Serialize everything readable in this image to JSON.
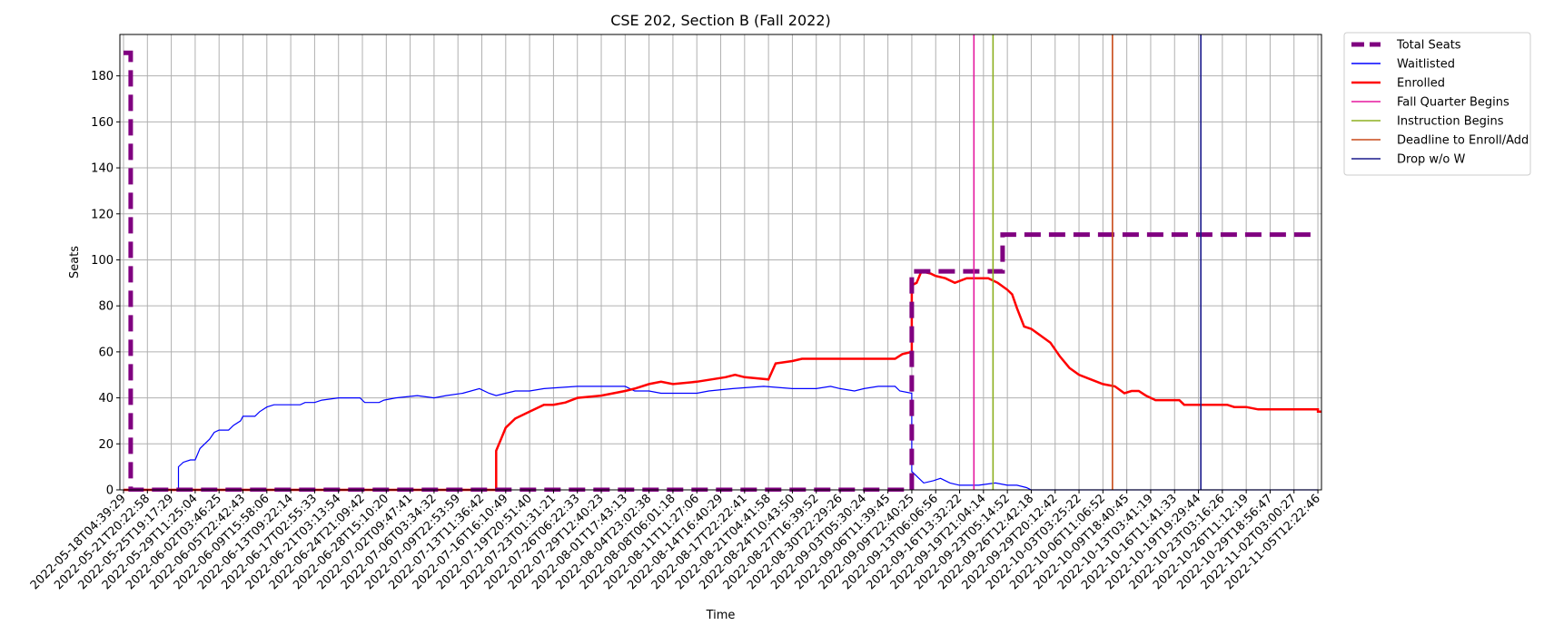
{
  "chart_data": {
    "type": "line",
    "title": "CSE 202, Section B (Fall 2022)",
    "xlabel": "Time",
    "ylabel": "Seats",
    "ylim": [
      0,
      198
    ],
    "y_ticks": [
      0,
      20,
      40,
      60,
      80,
      100,
      120,
      140,
      160,
      180
    ],
    "x_ticks": [
      "2022-05-18T04:39:29",
      "2022-05-21T20:22:58",
      "2022-05-25T19:17:29",
      "2022-05-29T11:25:04",
      "2022-06-02T03:46:25",
      "2022-06-05T22:42:43",
      "2022-06-09T15:58:06",
      "2022-06-13T09:22:14",
      "2022-06-17T02:55:33",
      "2022-06-21T03:13:54",
      "2022-06-24T21:09:42",
      "2022-06-28T15:10:20",
      "2022-07-02T09:47:41",
      "2022-07-06T03:34:32",
      "2022-07-09T22:53:59",
      "2022-07-13T11:36:42",
      "2022-07-16T16:10:49",
      "2022-07-19T20:51:40",
      "2022-07-23T01:31:21",
      "2022-07-26T06:22:33",
      "2022-07-29T12:40:23",
      "2022-08-01T17:43:13",
      "2022-08-04T23:02:38",
      "2022-08-08T06:01:18",
      "2022-08-11T11:27:06",
      "2022-08-14T16:40:29",
      "2022-08-17T22:22:41",
      "2022-08-21T04:41:58",
      "2022-08-24T10:43:50",
      "2022-08-27T16:39:52",
      "2022-08-30T22:29:26",
      "2022-09-03T05:30:24",
      "2022-09-06T11:39:45",
      "2022-09-09T22:40:25",
      "2022-09-13T06:06:56",
      "2022-09-16T13:32:22",
      "2022-09-19T21:04:14",
      "2022-09-23T05:14:52",
      "2022-09-26T12:42:18",
      "2022-09-29T20:12:42",
      "2022-10-03T03:25:22",
      "2022-10-06T11:06:52",
      "2022-10-09T18:40:45",
      "2022-10-13T03:41:19",
      "2022-10-16T11:41:33",
      "2022-10-19T19:29:44",
      "2022-10-23T03:16:26",
      "2022-10-26T11:12:19",
      "2022-10-29T18:56:47",
      "2022-11-02T03:00:27",
      "2022-11-05T12:22:46"
    ],
    "grid": true,
    "legend_position": "outside-right",
    "series": [
      {
        "name": "Total Seats",
        "color": "#800080",
        "style": "dashed-thick",
        "points": [
          [
            0,
            190
          ],
          [
            0.3,
            190
          ],
          [
            0.3,
            0
          ],
          [
            33.0,
            0
          ],
          [
            33.0,
            95
          ],
          [
            36.8,
            95
          ],
          [
            36.8,
            111
          ],
          [
            50.0,
            111
          ]
        ]
      },
      {
        "name": "Waitlisted",
        "color": "#0000ff",
        "style": "thin",
        "points": [
          [
            0,
            0
          ],
          [
            2.3,
            0
          ],
          [
            2.3,
            10
          ],
          [
            2.5,
            12
          ],
          [
            2.8,
            13
          ],
          [
            3.0,
            13
          ],
          [
            3.2,
            18
          ],
          [
            3.6,
            22
          ],
          [
            3.8,
            25
          ],
          [
            4.0,
            26
          ],
          [
            4.4,
            26
          ],
          [
            4.6,
            28
          ],
          [
            4.9,
            30
          ],
          [
            5.0,
            32
          ],
          [
            5.5,
            32
          ],
          [
            5.7,
            34
          ],
          [
            6.0,
            36
          ],
          [
            6.3,
            37
          ],
          [
            7.4,
            37
          ],
          [
            7.6,
            38
          ],
          [
            8.0,
            38
          ],
          [
            8.3,
            39
          ],
          [
            9.0,
            40
          ],
          [
            9.9,
            40
          ],
          [
            10.1,
            38
          ],
          [
            10.7,
            38
          ],
          [
            10.9,
            39
          ],
          [
            11.4,
            40
          ],
          [
            12.3,
            41
          ],
          [
            13.0,
            40
          ],
          [
            13.5,
            41
          ],
          [
            14.2,
            42
          ],
          [
            14.9,
            44
          ],
          [
            15.3,
            42
          ],
          [
            15.6,
            41
          ],
          [
            16.0,
            42
          ],
          [
            16.4,
            43
          ],
          [
            17.0,
            43
          ],
          [
            17.6,
            44
          ],
          [
            19.0,
            45
          ],
          [
            21.0,
            45
          ],
          [
            21.4,
            43
          ],
          [
            22.0,
            43
          ],
          [
            22.5,
            42
          ],
          [
            24.0,
            42
          ],
          [
            24.5,
            43
          ],
          [
            25.5,
            44
          ],
          [
            26.8,
            45
          ],
          [
            28.0,
            44
          ],
          [
            29.0,
            44
          ],
          [
            29.6,
            45
          ],
          [
            30.0,
            44
          ],
          [
            30.6,
            43
          ],
          [
            31.0,
            44
          ],
          [
            31.6,
            45
          ],
          [
            32.3,
            45
          ],
          [
            32.5,
            43
          ],
          [
            33.0,
            42
          ],
          [
            33.0,
            8
          ],
          [
            33.3,
            5
          ],
          [
            33.5,
            3
          ],
          [
            33.9,
            4
          ],
          [
            34.2,
            5
          ],
          [
            34.6,
            3
          ],
          [
            35.0,
            2
          ],
          [
            35.8,
            2
          ],
          [
            36.5,
            3
          ],
          [
            37.0,
            2
          ],
          [
            37.4,
            2
          ],
          [
            37.8,
            1
          ],
          [
            38.0,
            0
          ],
          [
            50.0,
            0
          ]
        ]
      },
      {
        "name": "Enrolled",
        "color": "#ff0000",
        "style": "thick",
        "points": [
          [
            0,
            0
          ],
          [
            15.6,
            0
          ],
          [
            15.6,
            17
          ],
          [
            15.8,
            22
          ],
          [
            16.0,
            27
          ],
          [
            16.4,
            31
          ],
          [
            17.0,
            34
          ],
          [
            17.6,
            37
          ],
          [
            18.0,
            37
          ],
          [
            18.5,
            38
          ],
          [
            19.0,
            40
          ],
          [
            20.0,
            41
          ],
          [
            21.0,
            43
          ],
          [
            21.4,
            44
          ],
          [
            22.0,
            46
          ],
          [
            22.5,
            47
          ],
          [
            23.0,
            46
          ],
          [
            24.0,
            47
          ],
          [
            24.6,
            48
          ],
          [
            25.2,
            49
          ],
          [
            25.6,
            50
          ],
          [
            26.0,
            49
          ],
          [
            27.0,
            48
          ],
          [
            27.3,
            55
          ],
          [
            28.0,
            56
          ],
          [
            28.4,
            57
          ],
          [
            32.3,
            57
          ],
          [
            32.6,
            59
          ],
          [
            33.0,
            60
          ],
          [
            33.0,
            89
          ],
          [
            33.2,
            90
          ],
          [
            33.4,
            95
          ],
          [
            33.8,
            94
          ],
          [
            34.0,
            93
          ],
          [
            34.4,
            92
          ],
          [
            34.8,
            90
          ],
          [
            35.3,
            92
          ],
          [
            36.2,
            92
          ],
          [
            36.6,
            90
          ],
          [
            37.0,
            87
          ],
          [
            37.2,
            85
          ],
          [
            37.4,
            79
          ],
          [
            37.7,
            71
          ],
          [
            38.0,
            70
          ],
          [
            38.4,
            67
          ],
          [
            38.8,
            64
          ],
          [
            39.2,
            58
          ],
          [
            39.6,
            53
          ],
          [
            40.0,
            50
          ],
          [
            40.5,
            48
          ],
          [
            41.0,
            46
          ],
          [
            41.5,
            45
          ],
          [
            41.9,
            42
          ],
          [
            42.2,
            43
          ],
          [
            42.5,
            43
          ],
          [
            42.8,
            41
          ],
          [
            43.2,
            39
          ],
          [
            44.2,
            39
          ],
          [
            44.4,
            37
          ],
          [
            46.2,
            37
          ],
          [
            46.5,
            36
          ],
          [
            47.0,
            36
          ],
          [
            47.5,
            35
          ],
          [
            50.0,
            35
          ],
          [
            50.0,
            34
          ],
          [
            51.5,
            34
          ]
        ]
      }
    ],
    "events": [
      {
        "name": "Fall Quarter Begins",
        "color": "#e5199e",
        "x": 35.6
      },
      {
        "name": "Instruction Begins",
        "color": "#8db020",
        "x": 36.4
      },
      {
        "name": "Deadline to Enroll/Add",
        "color": "#c84a18",
        "x": 41.4
      },
      {
        "name": "Drop w/o W",
        "color": "#1a1a8c",
        "x": 45.1
      }
    ]
  }
}
